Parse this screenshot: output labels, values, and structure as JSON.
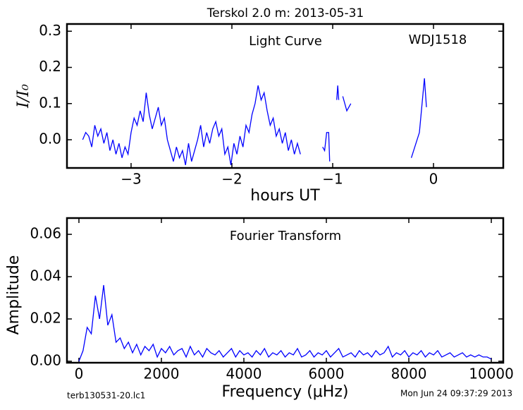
{
  "chart_data": [
    {
      "type": "line",
      "title": "Terskol 2.0 m:  2013-05-31",
      "annotations": [
        "Light Curve",
        "WDJ1518"
      ],
      "xlabel": "hours UT",
      "ylabel": "I/I₀",
      "xlim": [
        -3.636,
        0.692
      ],
      "ylim": [
        -0.078,
        0.32
      ],
      "xticks": [
        {
          "value": -3,
          "label": "−3"
        },
        {
          "value": -2,
          "label": "−2"
        },
        {
          "value": -1,
          "label": "−1"
        },
        0
      ],
      "yticks": [
        {
          "value": 0,
          "label": "0.0"
        },
        0.1,
        0.2,
        0.3
      ],
      "series": [
        {
          "color": "#0000ff",
          "x": [
            -3.48,
            -3.45,
            -3.42,
            -3.39,
            -3.36,
            -3.33,
            -3.3,
            -3.27,
            -3.24,
            -3.21,
            -3.18,
            -3.15,
            -3.12,
            -3.09,
            -3.06,
            -3.03,
            -3.0,
            -2.97,
            -2.94,
            -2.91,
            -2.88,
            -2.85,
            -2.82,
            -2.79,
            -2.76,
            -2.73,
            -2.7,
            -2.67,
            -2.64,
            -2.61,
            -2.58,
            -2.55,
            -2.52,
            -2.49,
            -2.46,
            -2.43,
            -2.4,
            -2.37,
            -2.34,
            -2.31,
            -2.28,
            -2.25,
            -2.22,
            -2.19,
            -2.16,
            -2.13,
            -2.1,
            -2.07,
            -2.04,
            -2.01,
            -1.98,
            -1.95,
            -1.92,
            -1.89,
            -1.86,
            -1.83,
            -1.8,
            -1.77,
            -1.74,
            -1.71,
            -1.68,
            -1.65,
            -1.62,
            -1.59,
            -1.56,
            -1.53,
            -1.5,
            -1.47,
            -1.44,
            -1.41,
            -1.38,
            -1.35,
            -1.32,
            null,
            -1.1,
            -1.08,
            -1.06,
            -1.04,
            -1.03,
            null,
            -0.96,
            -0.95,
            -0.94,
            null,
            -0.9,
            -0.86,
            -0.82,
            null,
            -0.22,
            -0.14,
            -0.09,
            -0.07
          ],
          "values": [
            0.0,
            0.02,
            0.01,
            -0.02,
            0.04,
            0.01,
            0.03,
            -0.01,
            0.02,
            -0.03,
            0.0,
            -0.04,
            -0.01,
            -0.05,
            -0.02,
            -0.04,
            0.02,
            0.06,
            0.04,
            0.08,
            0.05,
            0.13,
            0.07,
            0.03,
            0.06,
            0.09,
            0.04,
            0.06,
            0.0,
            -0.03,
            -0.06,
            -0.02,
            -0.05,
            -0.03,
            -0.07,
            -0.01,
            -0.06,
            -0.03,
            0.0,
            0.04,
            -0.02,
            0.02,
            -0.01,
            0.03,
            0.05,
            0.01,
            0.03,
            -0.04,
            -0.02,
            -0.07,
            -0.01,
            -0.04,
            0.01,
            -0.02,
            0.04,
            0.02,
            0.07,
            0.1,
            0.15,
            0.11,
            0.13,
            0.08,
            0.04,
            0.06,
            0.01,
            0.03,
            -0.01,
            0.02,
            -0.03,
            0.0,
            -0.04,
            -0.01,
            -0.04,
            null,
            -0.02,
            -0.03,
            0.02,
            0.02,
            -0.06,
            null,
            0.11,
            0.15,
            0.11,
            null,
            0.12,
            0.08,
            0.1,
            null,
            -0.05,
            0.02,
            0.17,
            0.09
          ]
        }
      ]
    },
    {
      "type": "line",
      "annotations": [
        "Fourier Transform"
      ],
      "xlabel": "Frequency (μHz)",
      "ylabel": "Amplitude",
      "xlim": [
        -290,
        10290
      ],
      "ylim": [
        -0.0007,
        0.0677
      ],
      "xticks": [
        0,
        2000,
        4000,
        6000,
        8000,
        10000
      ],
      "yticks": [
        {
          "value": 0,
          "label": "0.00"
        },
        {
          "value": 0.02,
          "label": "0.02"
        },
        {
          "value": 0.04,
          "label": "0.04"
        },
        {
          "value": 0.06,
          "label": "0.06"
        }
      ],
      "series": [
        {
          "color": "#0000ff",
          "x": [
            0,
            100,
            200,
            300,
            400,
            500,
            600,
            700,
            800,
            900,
            1000,
            1100,
            1200,
            1300,
            1400,
            1500,
            1600,
            1700,
            1800,
            1900,
            2000,
            2100,
            2200,
            2300,
            2400,
            2500,
            2600,
            2700,
            2800,
            2900,
            3000,
            3100,
            3200,
            3300,
            3400,
            3500,
            3600,
            3700,
            3800,
            3900,
            4000,
            4100,
            4200,
            4300,
            4400,
            4500,
            4600,
            4700,
            4800,
            4900,
            5000,
            5100,
            5200,
            5300,
            5400,
            5500,
            5600,
            5700,
            5800,
            5900,
            6000,
            6100,
            6200,
            6300,
            6400,
            6500,
            6600,
            6700,
            6800,
            6900,
            7000,
            7100,
            7200,
            7300,
            7400,
            7500,
            7600,
            7700,
            7800,
            7900,
            8000,
            8100,
            8200,
            8300,
            8400,
            8500,
            8600,
            8700,
            8800,
            8900,
            9000,
            9100,
            9200,
            9300,
            9400,
            9500,
            9600,
            9700,
            9800,
            9900,
            10000
          ],
          "values": [
            0.0,
            0.005,
            0.016,
            0.013,
            0.031,
            0.02,
            0.036,
            0.017,
            0.022,
            0.009,
            0.011,
            0.006,
            0.009,
            0.004,
            0.008,
            0.003,
            0.007,
            0.005,
            0.008,
            0.002,
            0.006,
            0.004,
            0.007,
            0.003,
            0.005,
            0.006,
            0.002,
            0.007,
            0.003,
            0.005,
            0.002,
            0.006,
            0.004,
            0.003,
            0.005,
            0.002,
            0.004,
            0.006,
            0.002,
            0.005,
            0.003,
            0.004,
            0.002,
            0.005,
            0.003,
            0.006,
            0.002,
            0.004,
            0.003,
            0.005,
            0.002,
            0.004,
            0.003,
            0.006,
            0.002,
            0.003,
            0.005,
            0.002,
            0.004,
            0.003,
            0.005,
            0.002,
            0.004,
            0.006,
            0.002,
            0.003,
            0.004,
            0.002,
            0.005,
            0.003,
            0.004,
            0.002,
            0.005,
            0.003,
            0.004,
            0.007,
            0.002,
            0.004,
            0.003,
            0.005,
            0.002,
            0.004,
            0.003,
            0.005,
            0.002,
            0.004,
            0.003,
            0.005,
            0.002,
            0.003,
            0.004,
            0.002,
            0.003,
            0.004,
            0.002,
            0.003,
            0.002,
            0.003,
            0.002,
            0.002,
            0.001
          ]
        }
      ]
    }
  ],
  "footer": [
    "terb130531-20.lc1",
    "Mon Jun 24 09:37:29 2013"
  ]
}
